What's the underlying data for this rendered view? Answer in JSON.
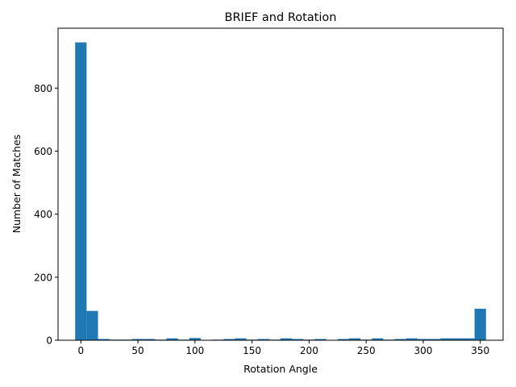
{
  "chart_data": {
    "type": "bar",
    "title": "BRIEF and Rotation",
    "xlabel": "Rotation Angle",
    "ylabel": "Number of Matches",
    "xlim": [
      -20,
      370
    ],
    "ylim": [
      0,
      990
    ],
    "xticks": [
      0,
      50,
      100,
      150,
      200,
      250,
      300,
      350
    ],
    "yticks": [
      0,
      200,
      400,
      600,
      800
    ],
    "bin_width": 10,
    "color": "#1f77b4",
    "grid": false,
    "bins": [
      {
        "x": 0,
        "value": 945
      },
      {
        "x": 10,
        "value": 93
      },
      {
        "x": 20,
        "value": 4
      },
      {
        "x": 30,
        "value": 2
      },
      {
        "x": 40,
        "value": 2
      },
      {
        "x": 50,
        "value": 4
      },
      {
        "x": 60,
        "value": 4
      },
      {
        "x": 70,
        "value": 2
      },
      {
        "x": 80,
        "value": 6
      },
      {
        "x": 90,
        "value": 2
      },
      {
        "x": 100,
        "value": 7
      },
      {
        "x": 110,
        "value": 1
      },
      {
        "x": 120,
        "value": 2
      },
      {
        "x": 130,
        "value": 4
      },
      {
        "x": 140,
        "value": 6
      },
      {
        "x": 150,
        "value": 2
      },
      {
        "x": 160,
        "value": 4
      },
      {
        "x": 170,
        "value": 2
      },
      {
        "x": 180,
        "value": 6
      },
      {
        "x": 190,
        "value": 4
      },
      {
        "x": 200,
        "value": 2
      },
      {
        "x": 210,
        "value": 4
      },
      {
        "x": 220,
        "value": 1
      },
      {
        "x": 230,
        "value": 4
      },
      {
        "x": 240,
        "value": 6
      },
      {
        "x": 250,
        "value": 2
      },
      {
        "x": 260,
        "value": 6
      },
      {
        "x": 270,
        "value": 2
      },
      {
        "x": 280,
        "value": 4
      },
      {
        "x": 290,
        "value": 6
      },
      {
        "x": 300,
        "value": 4
      },
      {
        "x": 310,
        "value": 4
      },
      {
        "x": 320,
        "value": 6
      },
      {
        "x": 330,
        "value": 6
      },
      {
        "x": 340,
        "value": 6
      },
      {
        "x": 350,
        "value": 100
      }
    ]
  }
}
